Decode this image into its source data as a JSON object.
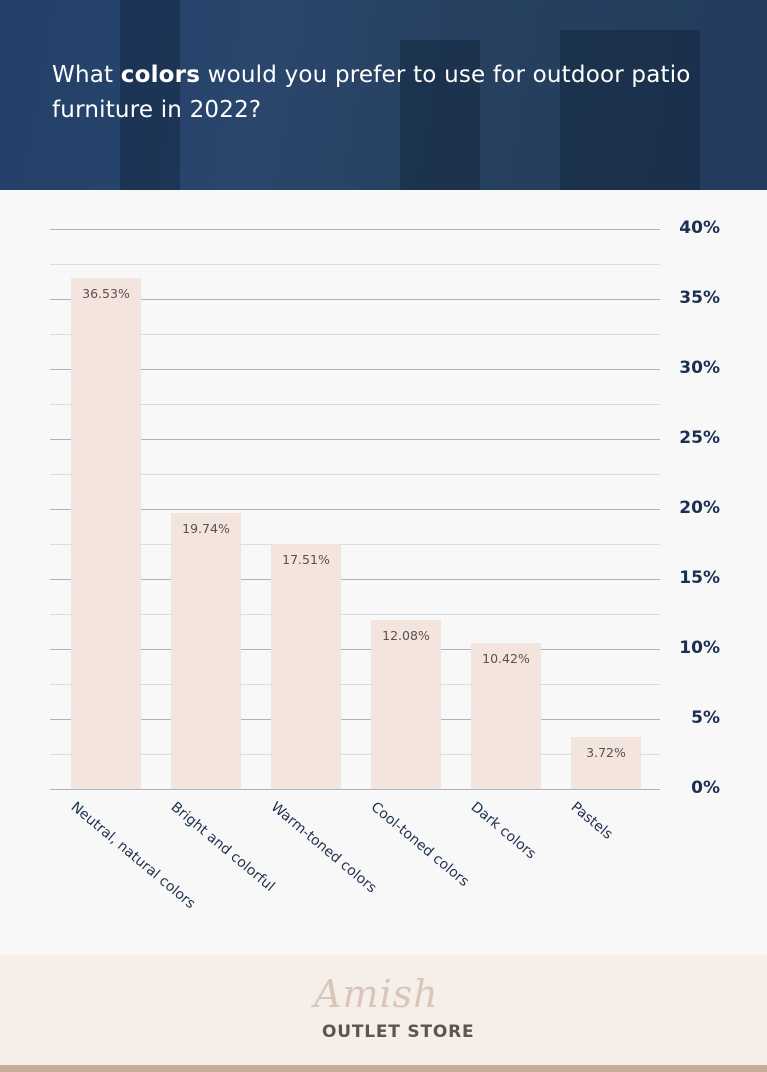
{
  "header": {
    "title_pre": "What ",
    "title_bold": "colors",
    "title_post": " would you prefer to use for outdoor patio furniture in 2022?"
  },
  "colors": {
    "header_bg": "#22406a",
    "bar": "#f3e5de",
    "axis_text": "#1b2f50",
    "footer_bg": "#f5eee9",
    "footer_stripe": "#c4ad9c"
  },
  "chart_data": {
    "type": "bar",
    "title": "What colors would you prefer to use for outdoor patio furniture in 2022?",
    "categories": [
      "Neutral, natural colors",
      "Bright and colorful",
      "Warm-toned colors",
      "Cool-toned colors",
      "Dark colors",
      "Pastels"
    ],
    "values": [
      36.53,
      19.74,
      17.51,
      12.08,
      10.42,
      3.72
    ],
    "value_labels": [
      "36.53%",
      "19.74%",
      "17.51%",
      "12.08%",
      "10.42%",
      "3.72%"
    ],
    "xlabel": "",
    "ylabel": "",
    "ylim": [
      0,
      40
    ],
    "yticks": [
      "40%",
      "35%",
      "30%",
      "25%",
      "20%",
      "15%",
      "10%",
      "5%",
      "0%"
    ],
    "y_axis_position": "right",
    "grid": true,
    "legend": null
  },
  "footer": {
    "logo_script": "Amish",
    "logo_text": "OUTLET STORE"
  }
}
